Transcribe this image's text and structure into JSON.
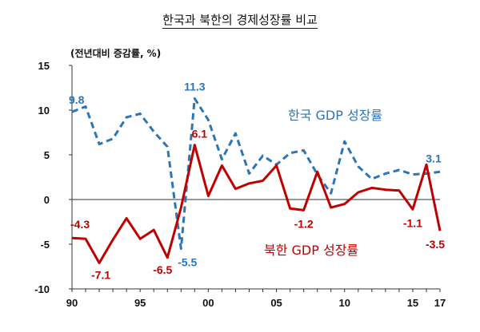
{
  "title": "한국과 북한의 경제성장률 비교",
  "unit_label": "(전년대비 증감률, %)",
  "colors": {
    "south": "#2E75B6",
    "north": "#C00000",
    "axis": "#333333"
  },
  "chart_data": {
    "type": "line",
    "title": "한국과 북한의 경제성장률 비교",
    "ylabel": "(전년대비 증감률, %)",
    "xlabel": "",
    "x": [
      1990,
      1991,
      1992,
      1993,
      1994,
      1995,
      1996,
      1997,
      1998,
      1999,
      2000,
      2001,
      2002,
      2003,
      2004,
      2005,
      2006,
      2007,
      2008,
      2009,
      2010,
      2011,
      2012,
      2013,
      2014,
      2015,
      2016,
      2017
    ],
    "xlim": [
      1990,
      2017
    ],
    "ylim": [
      -10,
      15
    ],
    "x_ticks": [
      1990,
      1995,
      2000,
      2005,
      2010,
      2015,
      2017
    ],
    "x_tick_labels": [
      "90",
      "95",
      "00",
      "05",
      "10",
      "15",
      "17"
    ],
    "y_ticks": [
      -10,
      -5,
      0,
      5,
      10,
      15
    ],
    "y_tick_labels": [
      "-10",
      "-5",
      "0",
      "5",
      "10",
      "15"
    ],
    "grid": false,
    "series": [
      {
        "name": "한국 GDP 성장률",
        "style": "dashed",
        "color": "#2E75B6",
        "values": [
          9.8,
          10.4,
          6.2,
          6.8,
          9.2,
          9.6,
          7.6,
          5.9,
          -5.5,
          11.3,
          8.9,
          4.5,
          7.4,
          2.9,
          4.9,
          3.9,
          5.2,
          5.5,
          2.8,
          0.7,
          6.5,
          3.7,
          2.3,
          2.9,
          3.3,
          2.8,
          2.9,
          3.1
        ]
      },
      {
        "name": "북한 GDP 성장률",
        "style": "solid",
        "color": "#C00000",
        "values": [
          -4.3,
          -4.4,
          -7.1,
          -4.5,
          -2.1,
          -4.4,
          -3.4,
          -6.5,
          -0.9,
          6.1,
          0.4,
          3.8,
          1.2,
          1.8,
          2.1,
          3.8,
          -1.0,
          -1.2,
          3.1,
          -0.9,
          -0.5,
          0.8,
          1.3,
          1.1,
          1.0,
          -1.1,
          3.9,
          -3.5
        ]
      }
    ],
    "annotations": [
      {
        "text": "9.8",
        "series": 0,
        "x": 1990
      },
      {
        "text": "11.3",
        "series": 0,
        "x": 1999
      },
      {
        "text": "-5.5",
        "series": 0,
        "x": 1998
      },
      {
        "text": "3.1",
        "series": 0,
        "x": 2017
      },
      {
        "text": "-4.3",
        "series": 1,
        "x": 1990
      },
      {
        "text": "-7.1",
        "series": 1,
        "x": 1992
      },
      {
        "text": "-6.5",
        "series": 1,
        "x": 1997
      },
      {
        "text": "6.1",
        "series": 1,
        "x": 1999
      },
      {
        "text": "-1.2",
        "series": 1,
        "x": 2007
      },
      {
        "text": "-1.1",
        "series": 1,
        "x": 2015
      },
      {
        "text": "-3.5",
        "series": 1,
        "x": 2017
      }
    ]
  }
}
